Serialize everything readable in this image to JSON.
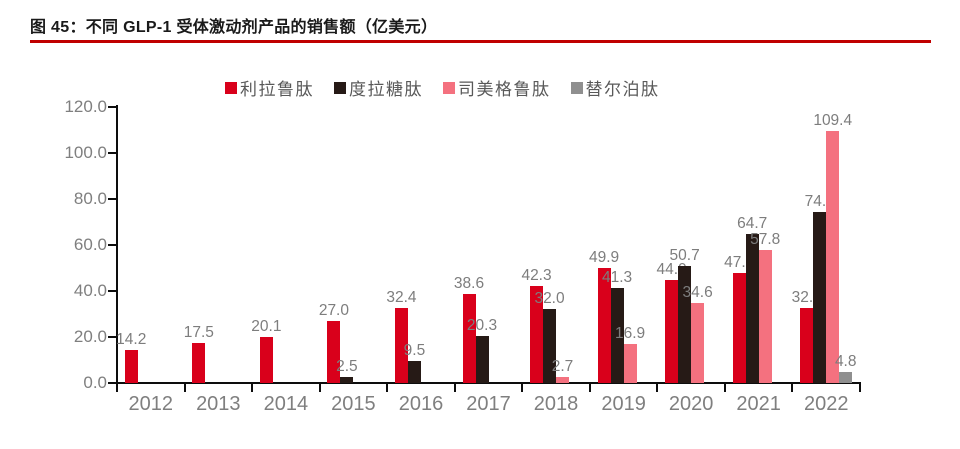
{
  "figure": {
    "title": "图 45：不同 GLP-1 受体激动剂产品的销售额（亿美元）",
    "accent_color": "#c00000"
  },
  "chart_data": {
    "type": "bar",
    "title": "不同 GLP-1 受体激动剂产品的销售额（亿美元）",
    "unit": "亿美元",
    "categories": [
      "2012",
      "2013",
      "2014",
      "2015",
      "2016",
      "2017",
      "2018",
      "2019",
      "2020",
      "2021",
      "2022"
    ],
    "series": [
      {
        "name": "利拉鲁肽",
        "color": "#d9001b",
        "values": [
          14.2,
          17.5,
          20.1,
          27.0,
          32.4,
          38.6,
          42.3,
          49.9,
          44.9,
          47.8,
          32.6
        ]
      },
      {
        "name": "度拉糖肽",
        "color": "#261a16",
        "values": [
          null,
          null,
          null,
          2.5,
          9.5,
          20.3,
          32.0,
          41.3,
          50.7,
          64.7,
          74.4
        ]
      },
      {
        "name": "司美格鲁肽",
        "color": "#f4717f",
        "values": [
          null,
          null,
          null,
          null,
          null,
          null,
          2.7,
          16.9,
          34.6,
          57.8,
          109.4
        ]
      },
      {
        "name": "替尔泊肽",
        "color": "#8f8f8f",
        "values": [
          null,
          null,
          null,
          null,
          null,
          null,
          null,
          null,
          null,
          null,
          4.8
        ]
      }
    ],
    "ylim": [
      0,
      120
    ],
    "ytick_labels": [
      "0.0",
      "20.0",
      "40.0",
      "60.0",
      "80.0",
      "100.0",
      "120.0"
    ],
    "ytick_step": 20,
    "grid": false,
    "legend_position": "top",
    "data_labels": true
  }
}
